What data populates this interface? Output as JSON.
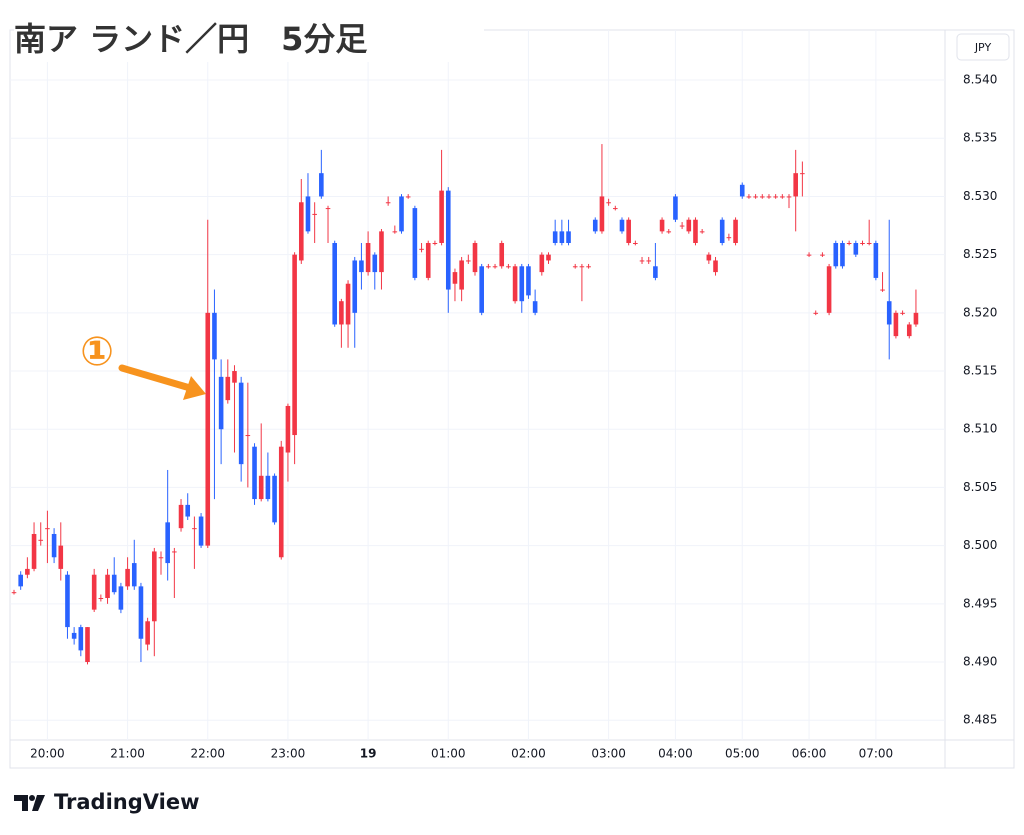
{
  "chart_data": {
    "type": "candlestick",
    "title": "南ア ランド／円　5分足",
    "annotation": "①",
    "currency_label": "JPY",
    "source": "TradingView",
    "up_color": "#f23645",
    "down_color": "#2962ff",
    "open": [
      8.496,
      8.4975,
      8.4975,
      8.498,
      8.5005,
      8.5015,
      8.501,
      8.498,
      8.4975,
      8.4925,
      8.493,
      8.49,
      8.4945,
      8.4955,
      8.4955,
      8.4975,
      8.4965,
      8.4965,
      8.4985,
      8.4965,
      8.4915,
      8.4935,
      8.499,
      8.502,
      8.4995,
      8.5015,
      8.5035,
      8.5015,
      8.5025,
      8.5,
      8.52,
      8.5145,
      8.5125,
      8.514,
      8.514,
      8.5095,
      8.5085,
      8.504,
      8.506,
      8.506,
      8.499,
      8.508,
      8.5095,
      8.5245,
      8.53,
      8.5285,
      8.532,
      8.529,
      8.526,
      8.519,
      8.519,
      8.5245,
      8.5245,
      8.5235,
      8.525,
      8.5235,
      8.5295,
      8.527,
      8.53,
      8.53,
      8.529,
      8.5255,
      8.523,
      8.526,
      8.526,
      8.5305,
      8.5225,
      8.522,
      8.5245,
      8.5235,
      8.524,
      8.524,
      8.524,
      8.524,
      8.524,
      8.521,
      8.524,
      8.524,
      8.521,
      8.5235,
      8.5245,
      8.527,
      8.527,
      8.527,
      8.524,
      8.524,
      8.524,
      8.528,
      8.527,
      8.5295,
      8.529,
      8.528,
      8.526,
      8.526,
      8.5245,
      8.5245,
      8.524,
      8.527,
      8.527,
      8.53,
      8.5275,
      8.527,
      8.526,
      8.527,
      8.5245,
      8.5235,
      8.528,
      8.5265,
      8.526,
      8.531,
      8.53,
      8.53,
      8.53,
      8.53,
      8.53,
      8.53,
      8.53,
      8.53,
      8.532,
      8.525,
      8.52,
      8.525,
      8.52,
      8.526,
      8.526,
      8.526,
      8.526,
      8.526,
      8.526,
      8.526,
      8.522,
      8.521,
      8.518,
      8.52,
      8.518,
      8.519
    ],
    "high": [
      8.4962,
      8.4978,
      8.499,
      8.502,
      8.502,
      8.503,
      8.5015,
      8.502,
      8.4978,
      8.493,
      8.4932,
      8.493,
      8.498,
      8.4958,
      8.498,
      8.499,
      8.4968,
      8.499,
      8.5005,
      8.4968,
      8.4938,
      8.4998,
      8.4995,
      8.5065,
      8.4998,
      8.504,
      8.5045,
      8.5025,
      8.5028,
      8.528,
      8.522,
      8.516,
      8.516,
      8.5155,
      8.5145,
      8.514,
      8.5088,
      8.5105,
      8.508,
      8.5062,
      8.509,
      8.5122,
      8.5252,
      8.5315,
      8.532,
      8.5295,
      8.534,
      8.5292,
      8.5262,
      8.5212,
      8.5228,
      8.5248,
      8.526,
      8.527,
      8.5252,
      8.5272,
      8.53,
      8.5275,
      8.5302,
      8.5302,
      8.5292,
      8.526,
      8.5262,
      8.5262,
      8.534,
      8.5308,
      8.5238,
      8.5248,
      8.525,
      8.5262,
      8.5242,
      8.5242,
      8.5242,
      8.5262,
      8.5242,
      8.5242,
      8.5242,
      8.5242,
      8.522,
      8.5252,
      8.5252,
      8.528,
      8.528,
      8.528,
      8.5242,
      8.5242,
      8.5242,
      8.5282,
      8.5345,
      8.5298,
      8.5292,
      8.5282,
      8.5282,
      8.5262,
      8.5248,
      8.5248,
      8.526,
      8.5282,
      8.5272,
      8.5302,
      8.5278,
      8.5282,
      8.5282,
      8.5272,
      8.5252,
      8.5248,
      8.5282,
      8.5268,
      8.5282,
      8.5312,
      8.5302,
      8.5302,
      8.5302,
      8.5302,
      8.5302,
      8.5302,
      8.5302,
      8.534,
      8.533,
      8.5252,
      8.5202,
      8.5252,
      8.5242,
      8.5262,
      8.5262,
      8.5262,
      8.5262,
      8.5262,
      8.528,
      8.5262,
      8.5235,
      8.528,
      8.5202,
      8.5202,
      8.5192,
      8.522
    ],
    "low": [
      8.4958,
      8.4962,
      8.4972,
      8.4978,
      8.5,
      8.4985,
      8.4985,
      8.497,
      8.492,
      8.4915,
      8.4905,
      8.4898,
      8.4943,
      8.4952,
      8.495,
      8.4958,
      8.4942,
      8.4962,
      8.4962,
      8.49,
      8.491,
      8.4905,
      8.4975,
      8.497,
      8.4955,
      8.5012,
      8.5022,
      8.498,
      8.4998,
      8.4998,
      8.504,
      8.507,
      8.5122,
      8.508,
      8.5055,
      8.505,
      8.5035,
      8.5038,
      8.5038,
      8.5018,
      8.4988,
      8.5055,
      8.507,
      8.5242,
      8.5268,
      8.526,
      8.5298,
      8.526,
      8.5188,
      8.517,
      8.517,
      8.517,
      8.522,
      8.5232,
      8.522,
      8.522,
      8.5292,
      8.5268,
      8.5268,
      8.5298,
      8.5228,
      8.5252,
      8.5228,
      8.5258,
      8.5258,
      8.52,
      8.521,
      8.521,
      8.5242,
      8.5232,
      8.5198,
      8.5238,
      8.5238,
      8.5238,
      8.5238,
      8.5208,
      8.52,
      8.5212,
      8.5198,
      8.5232,
      8.5242,
      8.5258,
      8.5258,
      8.5258,
      8.5238,
      8.521,
      8.5238,
      8.5268,
      8.5268,
      8.5292,
      8.5288,
      8.5268,
      8.5258,
      8.5258,
      8.5242,
      8.5242,
      8.5228,
      8.5268,
      8.5268,
      8.5278,
      8.5272,
      8.5268,
      8.5258,
      8.5268,
      8.5242,
      8.5232,
      8.5258,
      8.5262,
      8.5258,
      8.5298,
      8.5298,
      8.5298,
      8.5298,
      8.5298,
      8.5298,
      8.5298,
      8.529,
      8.527,
      8.53,
      8.5248,
      8.5198,
      8.5248,
      8.5198,
      8.5238,
      8.5238,
      8.5258,
      8.5248,
      8.5258,
      8.5258,
      8.5228,
      8.5218,
      8.516,
      8.5178,
      8.5198,
      8.5178,
      8.5188
    ],
    "close": [
      8.496,
      8.4965,
      8.498,
      8.501,
      8.5005,
      8.5015,
      8.499,
      8.5,
      8.493,
      8.492,
      8.491,
      8.493,
      8.4975,
      8.4955,
      8.4975,
      8.496,
      8.4945,
      8.498,
      8.4965,
      8.492,
      8.4935,
      8.4995,
      8.499,
      8.4985,
      8.4995,
      8.5035,
      8.5025,
      8.5015,
      8.5,
      8.52,
      8.516,
      8.51,
      8.5145,
      8.515,
      8.507,
      8.5095,
      8.504,
      8.506,
      8.504,
      8.502,
      8.5085,
      8.512,
      8.525,
      8.5295,
      8.527,
      8.5285,
      8.53,
      8.529,
      8.519,
      8.521,
      8.5225,
      8.52,
      8.5235,
      8.526,
      8.5235,
      8.527,
      8.5295,
      8.527,
      8.527,
      8.53,
      8.523,
      8.5255,
      8.526,
      8.526,
      8.5305,
      8.522,
      8.5235,
      8.5245,
      8.5245,
      8.526,
      8.52,
      8.524,
      8.524,
      8.526,
      8.524,
      8.524,
      8.521,
      8.5215,
      8.52,
      8.525,
      8.525,
      8.526,
      8.526,
      8.526,
      8.524,
      8.524,
      8.524,
      8.527,
      8.53,
      8.5295,
      8.529,
      8.527,
      8.528,
      8.526,
      8.5245,
      8.5245,
      8.523,
      8.528,
      8.527,
      8.528,
      8.5275,
      8.528,
      8.528,
      8.527,
      8.525,
      8.5245,
      8.526,
      8.5265,
      8.528,
      8.53,
      8.53,
      8.53,
      8.53,
      8.53,
      8.53,
      8.53,
      8.53,
      8.532,
      8.532,
      8.525,
      8.52,
      8.525,
      8.524,
      8.524,
      8.524,
      8.526,
      8.525,
      8.526,
      8.526,
      8.523,
      8.522,
      8.519,
      8.52,
      8.52,
      8.519,
      8.52
    ],
    "xlim": [
      -0.6,
      138.6
    ],
    "xticks": [
      {
        "value": 5,
        "label": "20:00"
      },
      {
        "value": 17,
        "label": "21:00"
      },
      {
        "value": 29,
        "label": "22:00"
      },
      {
        "value": 41,
        "label": "23:00"
      },
      {
        "value": 53,
        "label": "19"
      },
      {
        "value": 65,
        "label": "01:00"
      },
      {
        "value": 77,
        "label": "02:00"
      },
      {
        "value": 89,
        "label": "03:00"
      },
      {
        "value": 99,
        "label": "04:00"
      },
      {
        "value": 109,
        "label": "05:00"
      },
      {
        "value": 119,
        "label": "06:00"
      },
      {
        "value": 129,
        "label": "07:00"
      }
    ],
    "ylim": [
      8.4833,
      8.5443
    ],
    "yticks": [
      {
        "value": 8.485,
        "label": "8.485"
      },
      {
        "value": 8.49,
        "label": "8.490"
      },
      {
        "value": 8.495,
        "label": "8.495"
      },
      {
        "value": 8.5,
        "label": "8.500"
      },
      {
        "value": 8.505,
        "label": "8.505"
      },
      {
        "value": 8.51,
        "label": "8.510"
      },
      {
        "value": 8.515,
        "label": "8.515"
      },
      {
        "value": 8.52,
        "label": "8.520"
      },
      {
        "value": 8.525,
        "label": "8.525"
      },
      {
        "value": 8.53,
        "label": "8.530"
      },
      {
        "value": 8.535,
        "label": "8.535"
      },
      {
        "value": 8.54,
        "label": "8.540"
      }
    ],
    "grid": true
  }
}
